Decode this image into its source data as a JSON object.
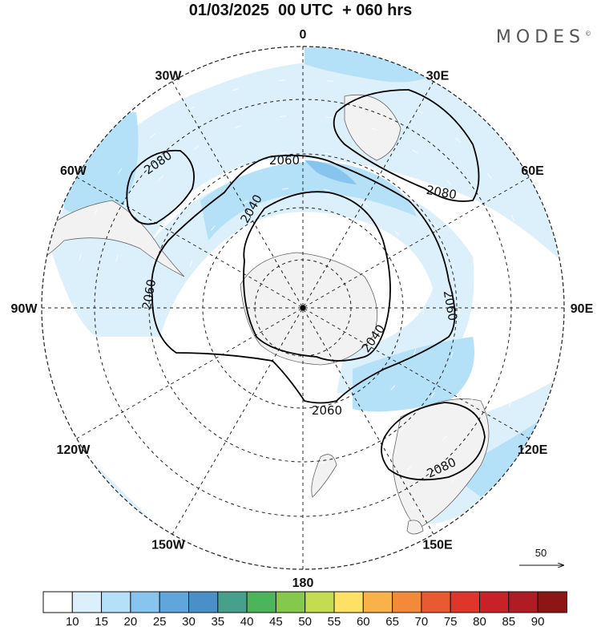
{
  "header": {
    "title": "01/03/2025  00 UTC  + 060 hrs",
    "brand": "MODES",
    "brand_mark": "©"
  },
  "map": {
    "projection": "south-polar-stereographic",
    "longitude_labels": [
      {
        "text": "0",
        "lon": 0
      },
      {
        "text": "30E",
        "lon": 30
      },
      {
        "text": "60E",
        "lon": 60
      },
      {
        "text": "90E",
        "lon": 90
      },
      {
        "text": "120E",
        "lon": 120
      },
      {
        "text": "150E",
        "lon": 150
      },
      {
        "text": "180",
        "lon": 180
      },
      {
        "text": "150W",
        "lon": -150
      },
      {
        "text": "120W",
        "lon": -120
      },
      {
        "text": "90W",
        "lon": -90
      },
      {
        "text": "60W",
        "lon": -60
      },
      {
        "text": "30W",
        "lon": -30
      }
    ],
    "contour_labels": [
      "2060",
      "2080",
      "2040",
      "2060",
      "2060",
      "2040",
      "2060",
      "2080",
      "2080"
    ],
    "vector_reference": {
      "label": "50"
    },
    "colors": {
      "land": "#f2f2f2",
      "coast": "#666666",
      "grid": "#222222",
      "contour": "#000000"
    }
  },
  "colorbar": {
    "ticks": [
      "10",
      "15",
      "20",
      "25",
      "30",
      "35",
      "40",
      "45",
      "50",
      "55",
      "60",
      "65",
      "70",
      "75",
      "80",
      "85",
      "90"
    ],
    "colors": [
      "#ffffff",
      "#dcf0fb",
      "#b4e0f8",
      "#87c5ee",
      "#5fa6dc",
      "#4a8fc7",
      "#46a08c",
      "#4cb45a",
      "#84c84c",
      "#c4dc50",
      "#fce164",
      "#f9b24a",
      "#f38a3a",
      "#ea5a32",
      "#de362a",
      "#c82228",
      "#b01c24",
      "#8c1616"
    ]
  }
}
